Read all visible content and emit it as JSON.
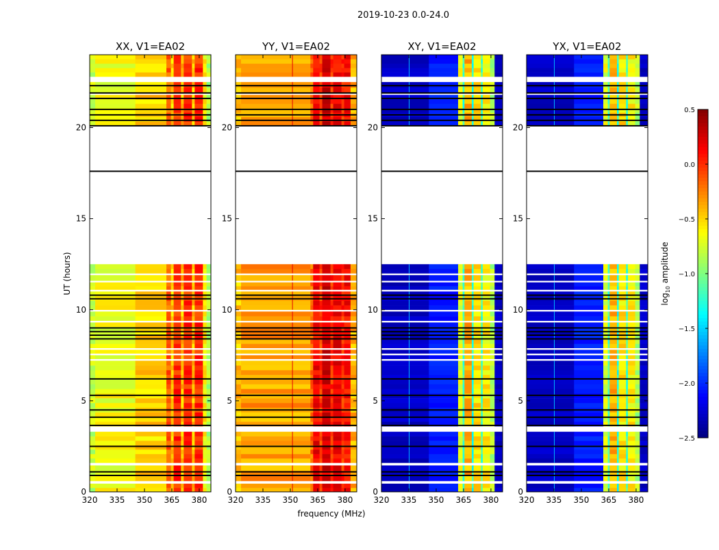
{
  "chart_data": {
    "type": "heatmap",
    "title": "2019-10-23 0.0-24.0",
    "xlabel": "frequency (MHz)",
    "ylabel": "UT (hours)",
    "xlim": [
      320,
      386.4
    ],
    "ylim": [
      0,
      24
    ],
    "xticks": [
      320,
      335,
      350,
      365,
      380
    ],
    "yticks": [
      0,
      5,
      10,
      15,
      20
    ],
    "colorbar": {
      "label": "log10 amplitude",
      "label_main": "log",
      "label_sub": "10",
      "label_rest": " amplitude",
      "colormap": "jet",
      "range": [
        -2.5,
        0.5
      ],
      "ticks": [
        0.5,
        0.0,
        -0.5,
        -1.0,
        -1.5,
        -2.0,
        -2.5
      ],
      "tick_labels": [
        "0.5",
        "0.0",
        "−0.5",
        "−1.0",
        "−1.5",
        "−2.0",
        "−2.5"
      ]
    },
    "time_blocks_hours": [
      [
        0,
        0.45
      ],
      [
        0.6,
        1.45
      ],
      [
        1.6,
        3.3
      ],
      [
        3.6,
        7.2
      ],
      [
        7.3,
        7.5
      ],
      [
        7.6,
        7.8
      ],
      [
        7.9,
        9.3
      ],
      [
        9.4,
        9.9
      ],
      [
        10.0,
        11.0
      ],
      [
        11.1,
        11.5
      ],
      [
        11.6,
        11.9
      ],
      [
        12.0,
        12.5
      ],
      [
        20.1,
        21.8
      ],
      [
        21.9,
        22.5
      ],
      [
        22.8,
        24.0
      ]
    ],
    "flagged_lines_hours": [
      0.9,
      1.1,
      2.5,
      3.65,
      4.1,
      4.5,
      5.3,
      6.2,
      8.4,
      8.6,
      8.8,
      9.0,
      10.6,
      10.8,
      17.6,
      20.1,
      20.4,
      20.7,
      21.0,
      21.6,
      21.9,
      22.3
    ],
    "panels": [
      {
        "title": "XX, V1=EA02",
        "bands": [
          [
            320,
            323,
            -0.8
          ],
          [
            323,
            345,
            -0.65
          ],
          [
            345,
            362,
            -0.5
          ],
          [
            362,
            364.5,
            -0.15
          ],
          [
            364.5,
            366,
            -0.5
          ],
          [
            366,
            370,
            0.0
          ],
          [
            370,
            371.5,
            -0.45
          ],
          [
            371.5,
            376,
            0.0
          ],
          [
            376,
            377.5,
            -0.45
          ],
          [
            377.5,
            382,
            0.0
          ],
          [
            382,
            384,
            -0.6
          ],
          [
            384,
            386.4,
            -0.85
          ]
        ],
        "lines": []
      },
      {
        "title": "YY, V1=EA02",
        "bands": [
          [
            320,
            323,
            -0.45
          ],
          [
            323,
            361,
            -0.35
          ],
          [
            361,
            362.5,
            -0.2
          ],
          [
            362.5,
            366,
            0.15
          ],
          [
            366,
            367.5,
            -0.05
          ],
          [
            367.5,
            372,
            0.25
          ],
          [
            372,
            373.5,
            0.0
          ],
          [
            373.5,
            378,
            0.15
          ],
          [
            378,
            379.5,
            0.0
          ],
          [
            379.5,
            383,
            0.1
          ],
          [
            383,
            386.4,
            -0.4
          ]
        ],
        "lines": [
          [
            351,
            0.2
          ]
        ]
      },
      {
        "title": "XY, V1=EA02",
        "bands": [
          [
            320,
            346,
            -2.3
          ],
          [
            346,
            362,
            -2.05
          ],
          [
            362,
            364.5,
            -0.7
          ],
          [
            364.5,
            365.5,
            -1.2
          ],
          [
            365.5,
            369.5,
            -0.4
          ],
          [
            369.5,
            370.5,
            -1.3
          ],
          [
            370.5,
            374.5,
            -0.55
          ],
          [
            374.5,
            375.5,
            -1.2
          ],
          [
            375.5,
            379.5,
            -0.6
          ],
          [
            379.5,
            382,
            -0.85
          ],
          [
            382,
            386.4,
            -2.3
          ]
        ],
        "lines": [
          [
            335,
            -1.6
          ]
        ]
      },
      {
        "title": "YX, V1=EA02",
        "bands": [
          [
            320,
            346,
            -2.3
          ],
          [
            346,
            362,
            -2.05
          ],
          [
            362,
            364.5,
            -0.7
          ],
          [
            364.5,
            365.5,
            -1.2
          ],
          [
            365.5,
            369.5,
            -0.4
          ],
          [
            369.5,
            370.5,
            -1.3
          ],
          [
            370.5,
            374.5,
            -0.55
          ],
          [
            374.5,
            375.5,
            -1.2
          ],
          [
            375.5,
            379.5,
            -0.6
          ],
          [
            379.5,
            382,
            -0.85
          ],
          [
            382,
            386.4,
            -2.3
          ]
        ],
        "lines": [
          [
            335,
            -1.6
          ]
        ]
      }
    ]
  }
}
